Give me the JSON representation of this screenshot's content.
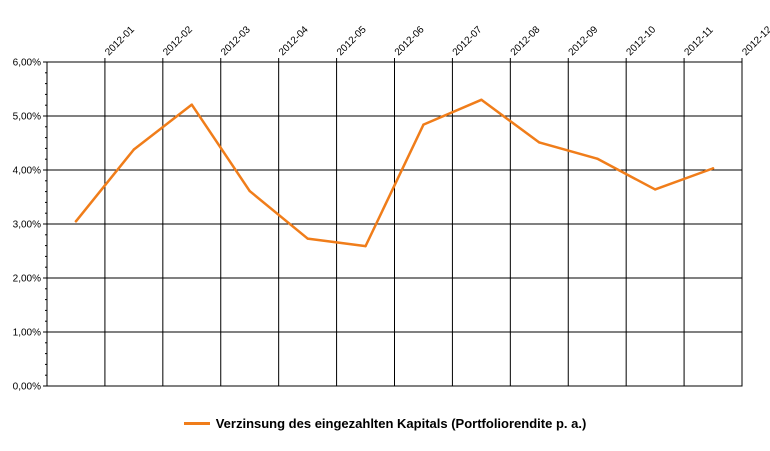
{
  "chart_data": {
    "type": "line",
    "title": "",
    "xlabel": "",
    "ylabel": "",
    "categories": [
      "2012-01",
      "2012-02",
      "2012-03",
      "2012-04",
      "2012-05",
      "2012-06",
      "2012-07",
      "2012-08",
      "2012-09",
      "2012-10",
      "2012-11",
      "2012-12"
    ],
    "series": [
      {
        "name": "Verzinsung des eingezahlten Kapitals (Portfoliorendite p. a.)",
        "values": [
          3.05,
          4.38,
          5.21,
          3.61,
          2.73,
          2.59,
          4.84,
          5.3,
          4.51,
          4.21,
          3.64,
          4.03
        ],
        "color": "#f07d1a"
      }
    ],
    "ylim": [
      0,
      6
    ],
    "yticks": [
      "0,00%",
      "1,00%",
      "2,00%",
      "3,00%",
      "4,00%",
      "5,00%",
      "6,00%"
    ],
    "grid": true,
    "legend_position": "bottom"
  }
}
